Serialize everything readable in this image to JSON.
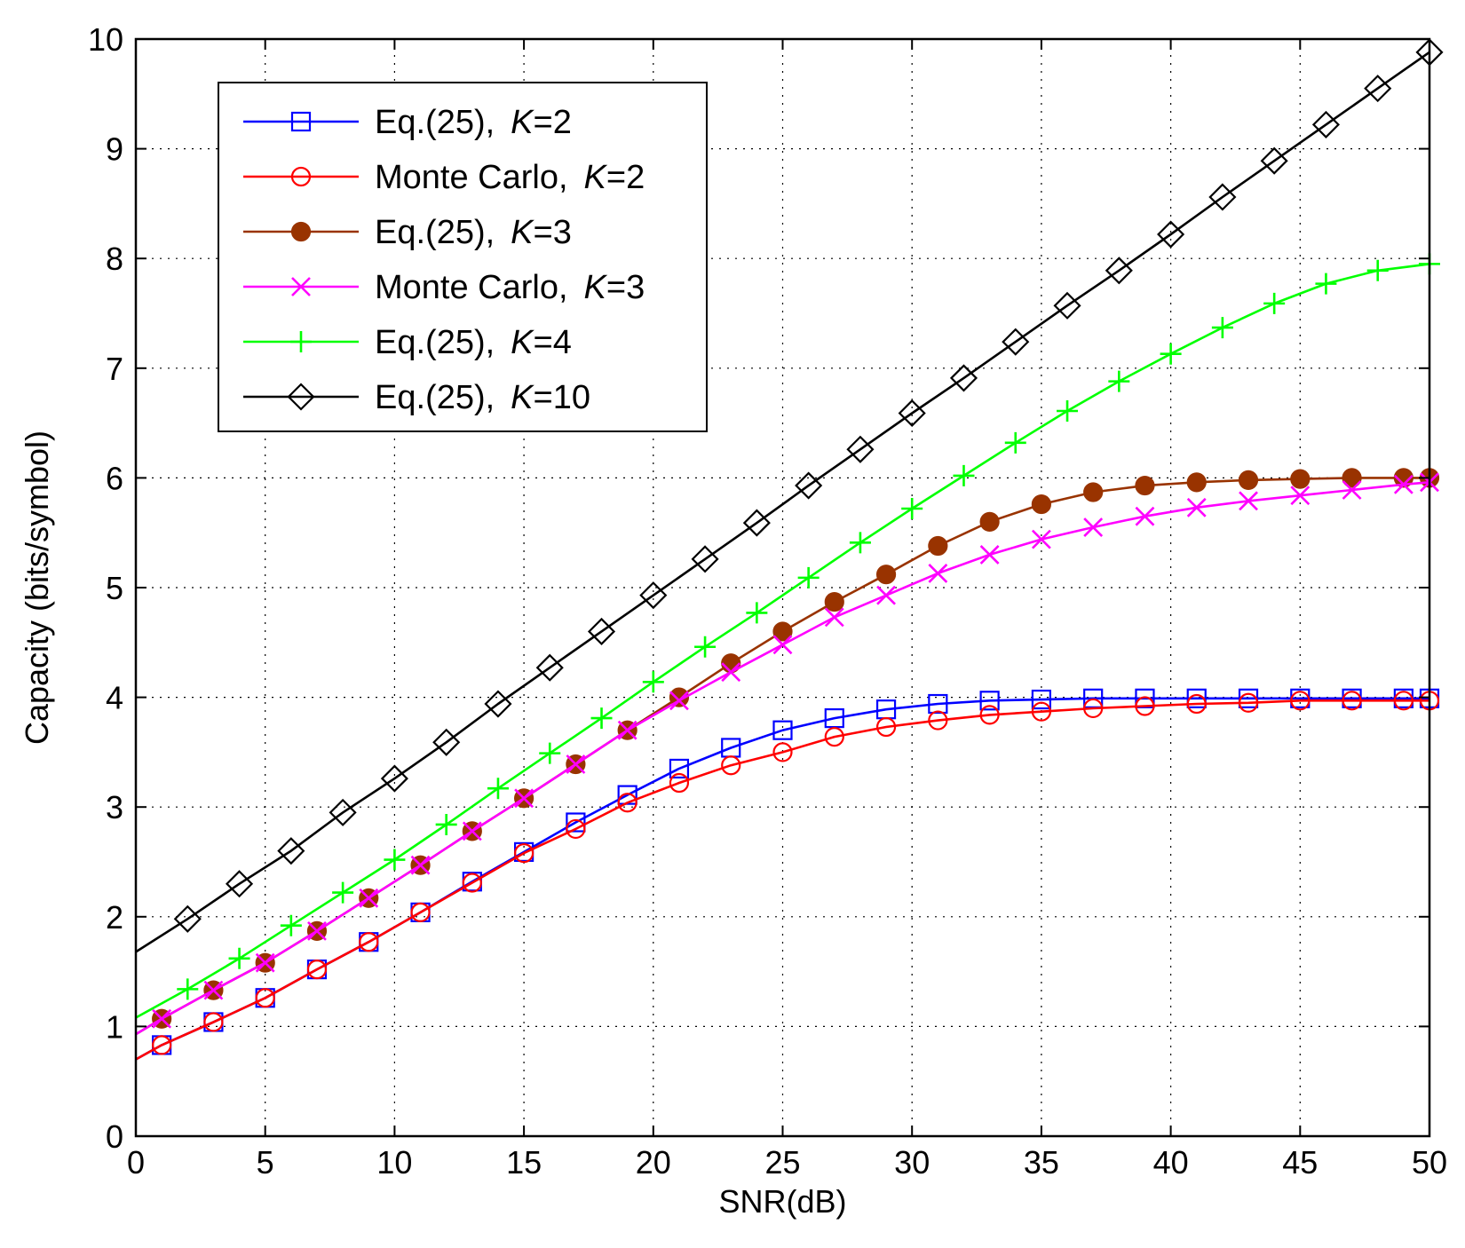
{
  "chart_data": {
    "type": "line",
    "title": "",
    "xlabel": "SNR(dB)",
    "ylabel": "Capacity (bits/symbol)",
    "xlim": [
      0,
      50
    ],
    "ylim": [
      0,
      10
    ],
    "xticks": [
      "0",
      "5",
      "10",
      "15",
      "20",
      "25",
      "30",
      "35",
      "40",
      "45",
      "50"
    ],
    "yticks": [
      "0",
      "1",
      "2",
      "3",
      "4",
      "5",
      "6",
      "7",
      "8",
      "9",
      "10"
    ],
    "grid": true,
    "legend_position": "top-left",
    "series": [
      {
        "label_prefix": "Eq.(25),",
        "label_k": "K",
        "label_suffix": "=2",
        "color": "#0000ff",
        "marker": "square",
        "x": [
          0,
          1,
          3,
          5,
          7,
          9,
          11,
          13,
          15,
          17,
          19,
          21,
          23,
          25,
          27,
          29,
          31,
          33,
          35,
          37,
          39,
          41,
          43,
          45,
          47,
          49,
          50
        ],
        "y": [
          0.7,
          0.83,
          1.04,
          1.26,
          1.52,
          1.77,
          2.04,
          2.32,
          2.59,
          2.86,
          3.11,
          3.35,
          3.54,
          3.7,
          3.81,
          3.89,
          3.94,
          3.97,
          3.98,
          3.99,
          3.99,
          3.99,
          3.99,
          3.99,
          3.99,
          3.99,
          3.99
        ]
      },
      {
        "label_prefix": "Monte Carlo,",
        "label_k": "K",
        "label_suffix": "=2",
        "color": "#ff0000",
        "marker": "circle",
        "x": [
          0,
          1,
          3,
          5,
          7,
          9,
          11,
          13,
          15,
          17,
          19,
          21,
          23,
          25,
          27,
          29,
          31,
          33,
          35,
          37,
          39,
          41,
          43,
          45,
          47,
          49,
          50
        ],
        "y": [
          0.7,
          0.83,
          1.04,
          1.26,
          1.52,
          1.77,
          2.04,
          2.31,
          2.58,
          2.8,
          3.04,
          3.22,
          3.38,
          3.5,
          3.64,
          3.73,
          3.79,
          3.84,
          3.87,
          3.9,
          3.92,
          3.94,
          3.95,
          3.97,
          3.97,
          3.97,
          3.97
        ]
      },
      {
        "label_prefix": "Eq.(25),",
        "label_k": "K",
        "label_suffix": "=3",
        "color": "#993300",
        "marker": "filled-circle",
        "x": [
          0,
          1,
          3,
          5,
          7,
          9,
          11,
          13,
          15,
          17,
          19,
          21,
          23,
          25,
          27,
          29,
          31,
          33,
          35,
          37,
          39,
          41,
          43,
          45,
          47,
          49,
          50
        ],
        "y": [
          0.93,
          1.07,
          1.33,
          1.58,
          1.87,
          2.17,
          2.47,
          2.78,
          3.08,
          3.39,
          3.7,
          4.0,
          4.31,
          4.6,
          4.87,
          5.12,
          5.38,
          5.6,
          5.76,
          5.87,
          5.93,
          5.96,
          5.98,
          5.99,
          6.0,
          6.0,
          6.0
        ]
      },
      {
        "label_prefix": "Monte Carlo,",
        "label_k": "K",
        "label_suffix": "=3",
        "color": "#ff00ff",
        "marker": "x",
        "x": [
          0,
          1,
          3,
          5,
          7,
          9,
          11,
          13,
          15,
          17,
          19,
          21,
          23,
          25,
          27,
          29,
          31,
          33,
          35,
          37,
          39,
          41,
          43,
          45,
          47,
          49,
          50
        ],
        "y": [
          0.93,
          1.07,
          1.33,
          1.58,
          1.87,
          2.17,
          2.47,
          2.78,
          3.08,
          3.39,
          3.7,
          3.97,
          4.23,
          4.48,
          4.73,
          4.93,
          5.13,
          5.3,
          5.44,
          5.55,
          5.65,
          5.73,
          5.79,
          5.84,
          5.89,
          5.94,
          5.96
        ]
      },
      {
        "label_prefix": "Eq.(25),",
        "label_k": "K",
        "label_suffix": "=4",
        "color": "#00ff00",
        "marker": "plus",
        "x": [
          0,
          2,
          4,
          6,
          8,
          10,
          12,
          14,
          16,
          18,
          20,
          22,
          24,
          26,
          28,
          30,
          32,
          34,
          36,
          38,
          40,
          42,
          44,
          46,
          48,
          50
        ],
        "y": [
          1.08,
          1.34,
          1.62,
          1.92,
          2.22,
          2.52,
          2.84,
          3.17,
          3.49,
          3.81,
          4.14,
          4.46,
          4.77,
          5.09,
          5.41,
          5.72,
          6.02,
          6.32,
          6.61,
          6.88,
          7.13,
          7.37,
          7.59,
          7.77,
          7.89,
          7.95
        ]
      },
      {
        "label_prefix": "Eq.(25),",
        "label_k": "K",
        "label_suffix": "=10",
        "color": "#000000",
        "marker": "diamond",
        "x": [
          0,
          2,
          4,
          6,
          8,
          10,
          12,
          14,
          16,
          18,
          20,
          22,
          24,
          26,
          28,
          30,
          32,
          34,
          36,
          38,
          40,
          42,
          44,
          46,
          48,
          50
        ],
        "y": [
          1.68,
          1.98,
          2.3,
          2.6,
          2.95,
          3.26,
          3.59,
          3.94,
          4.27,
          4.6,
          4.93,
          5.26,
          5.59,
          5.93,
          6.26,
          6.59,
          6.91,
          7.24,
          7.57,
          7.89,
          8.22,
          8.56,
          8.89,
          9.22,
          9.55,
          9.88
        ]
      }
    ]
  }
}
